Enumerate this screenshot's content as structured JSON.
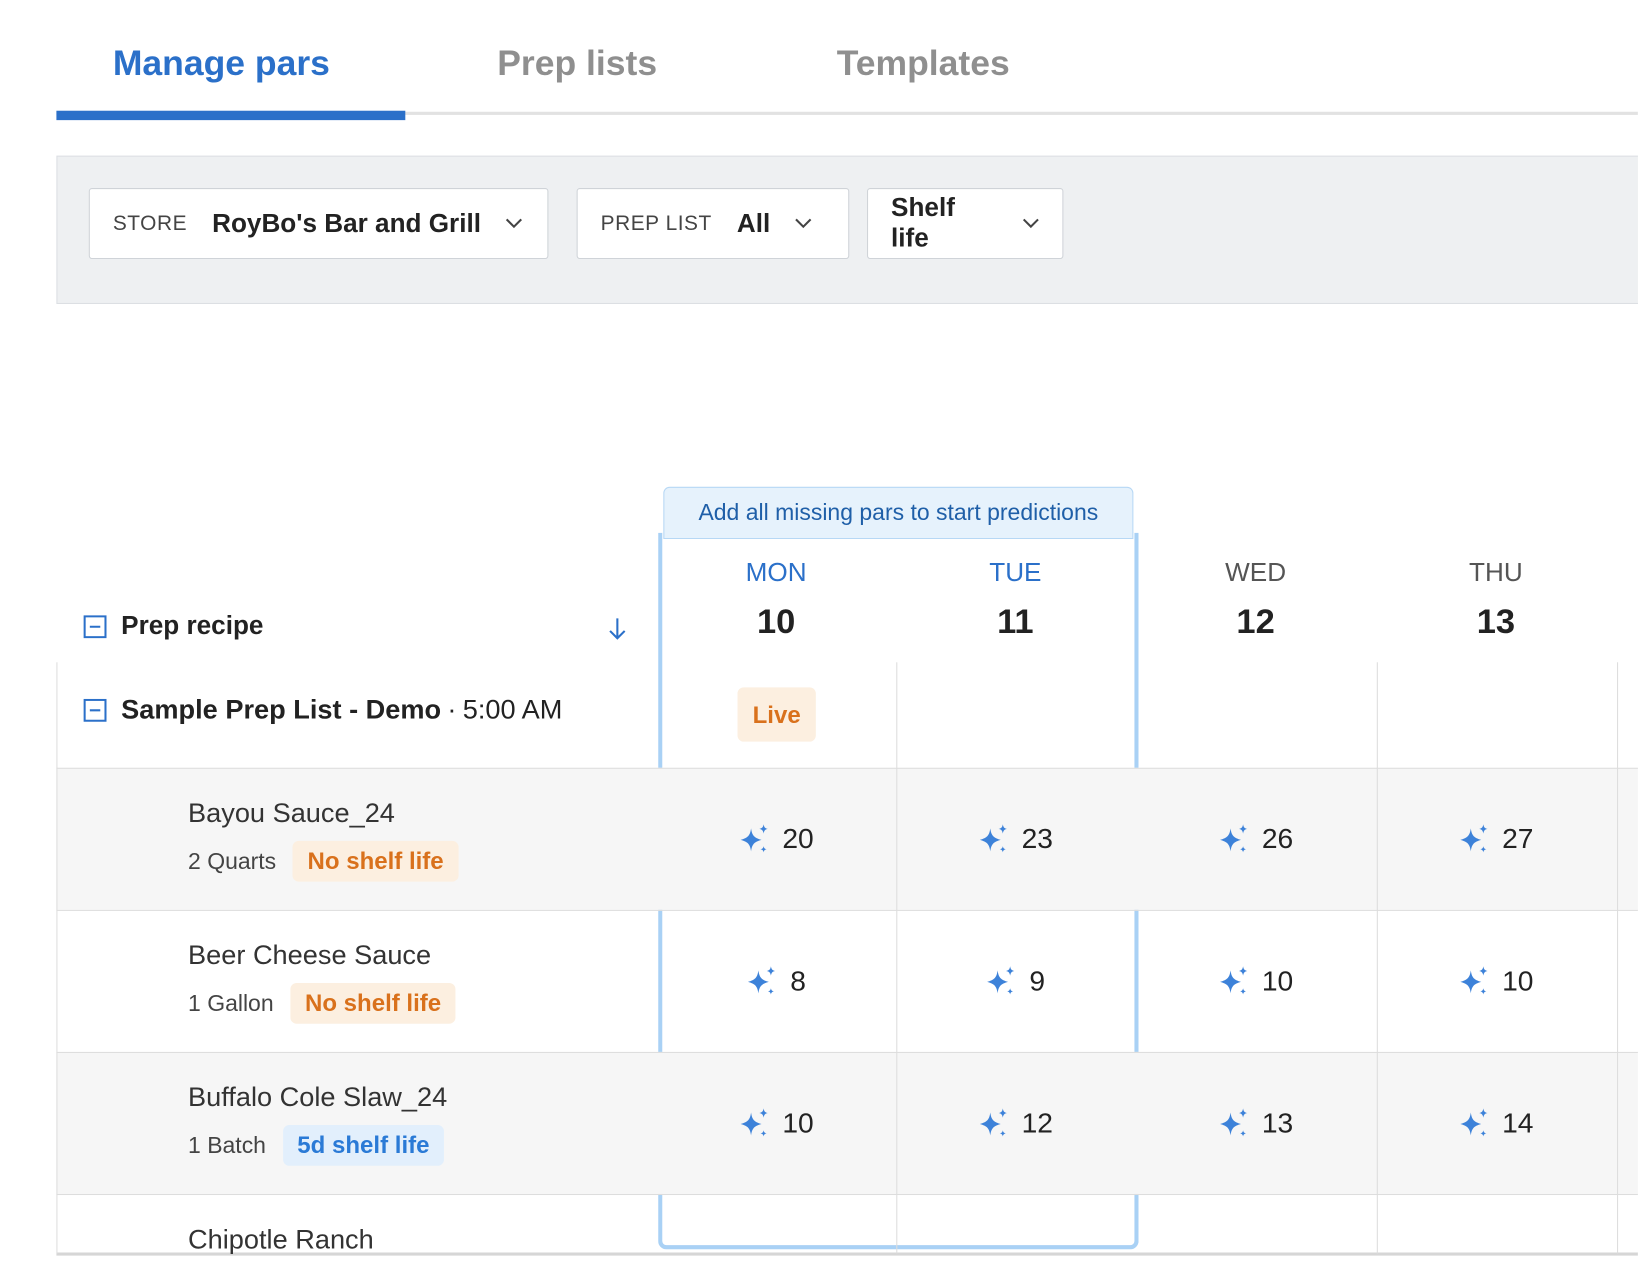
{
  "tabs": {
    "items": [
      "Manage pars",
      "Prep lists",
      "Templates"
    ],
    "active": 0
  },
  "filters": {
    "store_label": "STORE",
    "store_value": "RoyBo's Bar and Grill",
    "prep_label": "PREP LIST",
    "prep_value": "All",
    "shelf": "Shelf life"
  },
  "banner": "Add all missing pars to start predictions",
  "table": {
    "column_title": "Prep recipe",
    "days": [
      {
        "dow": "MON",
        "date": 10
      },
      {
        "dow": "TUE",
        "date": 11
      },
      {
        "dow": "WED",
        "date": 12
      },
      {
        "dow": "THU",
        "date": 13
      }
    ],
    "group": {
      "name": "Sample Prep List - Demo",
      "separator": "·",
      "time": "5:00 AM",
      "status": "Live"
    },
    "rows": [
      {
        "name": "Bayou Sauce_24",
        "unit": "2 Quarts",
        "shelf": "No shelf life",
        "shelf_color": "#d9711c",
        "shelf_bg": "#fcefe0",
        "pars": [
          20,
          23,
          26,
          27
        ]
      },
      {
        "name": "Beer Cheese Sauce",
        "unit": "1 Gallon",
        "shelf": "No shelf life",
        "shelf_color": "#d9711c",
        "shelf_bg": "#fcefe0",
        "pars": [
          8,
          9,
          10,
          10
        ]
      },
      {
        "name": "Buffalo Cole Slaw_24",
        "unit": "1 Batch",
        "shelf": "5d shelf life",
        "shelf_color": "#2a7ad6",
        "shelf_bg": "#e2effc",
        "pars": [
          10,
          12,
          13,
          14
        ]
      },
      {
        "name": "Chipotle Ranch"
      }
    ]
  }
}
